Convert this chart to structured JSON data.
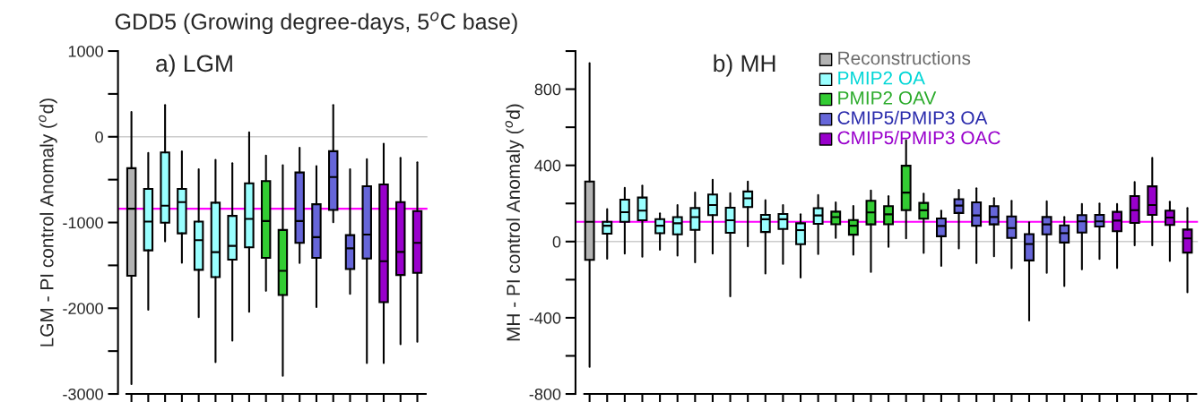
{
  "chart_data": [
    {
      "type": "box",
      "title": "GDD5 (Growing degree-days, 5$^{o}$C base)",
      "subtitle": "a) LGM",
      "ylabel": "LGM - PI control Anomaly ($^{o}$d)",
      "categories": [
        null,
        null,
        null,
        null,
        null,
        null,
        null,
        null,
        null,
        null,
        null,
        null,
        null,
        null,
        null,
        null,
        null,
        null
      ],
      "ylim": [
        -3000,
        1000
      ],
      "yticks": [
        -3000,
        {
          "value": -2500,
          "label": null
        },
        -2000,
        {
          "value": -1500,
          "label": null
        },
        -1000,
        {
          "value": -500,
          "label": null
        },
        0,
        {
          "value": 500,
          "label": null
        },
        1000
      ],
      "tick_labels": "y",
      "grid": false,
      "legend": false,
      "ref_lines": [
        {
          "axis": "y",
          "value": 0,
          "color": "#cccccc"
        },
        {
          "axis": "y",
          "value": -839,
          "color": "#ff00ff"
        }
      ],
      "series": [
        {
          "color": "#b3b3b3",
          "boxes": [
            {
              "low": -2885,
              "q1": -1622,
              "median": -839,
              "q3": -367,
              "high": 290
            },
            null,
            null,
            null,
            null,
            null,
            null,
            null,
            null,
            null,
            null,
            null,
            null,
            null,
            null,
            null,
            null,
            null
          ]
        },
        {
          "color": "#99ffff",
          "boxes": [
            null,
            {
              "low": -2017,
              "q1": -1325,
              "median": -990,
              "q3": -608,
              "high": -189
            },
            {
              "low": -1220,
              "q1": -1003,
              "median": -804,
              "q3": -182,
              "high": 371
            },
            {
              "low": -1469,
              "q1": -1126,
              "median": -762,
              "q3": -608,
              "high": -171
            },
            {
              "low": -2105,
              "q1": -1552,
              "median": -1206,
              "q3": -990,
              "high": -378
            },
            {
              "low": -2629,
              "q1": -1636,
              "median": -1346,
              "q3": -769,
              "high": -269
            },
            {
              "low": -2378,
              "q1": -1434,
              "median": -1273,
              "q3": -923,
              "high": -308
            },
            {
              "low": -2042,
              "q1": -1290,
              "median": -958,
              "q3": -542,
              "high": 52
            },
            null,
            null,
            null,
            null,
            null,
            null,
            null,
            null,
            null,
            null
          ]
        },
        {
          "color": "#33cc33",
          "boxes": [
            null,
            null,
            null,
            null,
            null,
            null,
            null,
            null,
            {
              "low": -1797,
              "q1": -1413,
              "median": -983,
              "q3": -517,
              "high": -220
            },
            {
              "low": -2787,
              "q1": -1846,
              "median": -1563,
              "q3": -1087,
              "high": -332
            },
            null,
            null,
            null,
            null,
            null,
            null,
            null,
            null
          ]
        },
        {
          "color": "#6666d9",
          "boxes": [
            null,
            null,
            null,
            null,
            null,
            null,
            null,
            null,
            null,
            null,
            {
              "low": -1472,
              "q1": -1238,
              "median": -983,
              "q3": -416,
              "high": -129
            },
            {
              "low": -1986,
              "q1": -1413,
              "median": -1171,
              "q3": -787,
              "high": -343
            },
            {
              "low": -997,
              "q1": -853,
              "median": -469,
              "q3": -168,
              "high": 371
            },
            {
              "low": -1832,
              "q1": -1542,
              "median": -1301,
              "q3": -1147,
              "high": -378
            },
            {
              "low": -2640,
              "q1": -1420,
              "median": -1140,
              "q3": -577,
              "high": -262
            },
            null,
            null,
            null
          ]
        },
        {
          "color": "#9900cc",
          "boxes": [
            null,
            null,
            null,
            null,
            null,
            null,
            null,
            null,
            null,
            null,
            null,
            null,
            null,
            null,
            null,
            {
              "low": -2640,
              "q1": -1930,
              "median": -1451,
              "q3": -556,
              "high": -80
            },
            {
              "low": -2420,
              "q1": -1612,
              "median": -1343,
              "q3": -762,
              "high": -245
            },
            {
              "low": -2392,
              "q1": -1587,
              "median": -1238,
              "q3": -867,
              "high": -297
            }
          ]
        }
      ]
    },
    {
      "type": "box",
      "subtitle": "b) MH",
      "ylabel": "MH - PI control Anomaly ($^{o}$d)",
      "categories": [
        null,
        null,
        null,
        null,
        null,
        null,
        null,
        null,
        null,
        null,
        null,
        null,
        null,
        null,
        null,
        null,
        null,
        null,
        null,
        null,
        null,
        null,
        null,
        null,
        null,
        null,
        null,
        null,
        null,
        null,
        null,
        null,
        null,
        null,
        null
      ],
      "ylim": [
        -800,
        1000
      ],
      "yticks": [
        -800,
        {
          "value": -600,
          "label": null
        },
        -400,
        {
          "value": -200,
          "label": null
        },
        0,
        {
          "value": 200,
          "label": null
        },
        400,
        {
          "value": 600,
          "label": null
        },
        800,
        {
          "value": 1000,
          "label": null
        }
      ],
      "tick_labels": "y",
      "grid": false,
      "legend": "top right",
      "ref_lines": [
        {
          "axis": "y",
          "value": 0,
          "color": "#cccccc"
        },
        {
          "axis": "y",
          "value": 104,
          "color": "#ff00ff"
        }
      ],
      "series": [
        {
          "name": "Reconstructions",
          "color": "#b3b3b3",
          "boxes": [
            {
              "low": -658,
              "q1": -96,
              "median": 104,
              "q3": 315,
              "high": 937
            },
            null,
            null,
            null,
            null,
            null,
            null,
            null,
            null,
            null,
            null,
            null,
            null,
            null,
            null,
            null,
            null,
            null,
            null,
            null,
            null,
            null,
            null,
            null,
            null,
            null,
            null,
            null,
            null,
            null,
            null,
            null,
            null,
            null,
            null
          ]
        },
        {
          "name": "PMIP2 OA",
          "color": "#99ffff",
          "boxes": [
            null,
            {
              "low": -90,
              "q1": 41,
              "median": 83,
              "q3": 104,
              "high": 170
            },
            {
              "low": -63,
              "q1": 104,
              "median": 154,
              "q3": 220,
              "high": 282
            },
            {
              "low": -80,
              "q1": 112,
              "median": 162,
              "q3": 231,
              "high": 294
            },
            {
              "low": -43,
              "q1": 44,
              "median": 83,
              "q3": 118,
              "high": 148
            },
            {
              "low": -74,
              "q1": 38,
              "median": 96,
              "q3": 128,
              "high": 192
            },
            {
              "low": -109,
              "q1": 61,
              "median": 128,
              "q3": 176,
              "high": 257
            },
            {
              "low": -63,
              "q1": 139,
              "median": 192,
              "q3": 247,
              "high": 324
            },
            {
              "low": -288,
              "q1": 46,
              "median": 112,
              "q3": 178,
              "high": 254
            },
            {
              "low": -25,
              "q1": 181,
              "median": 227,
              "q3": 263,
              "high": 315
            },
            {
              "low": -168,
              "q1": 50,
              "median": 117,
              "q3": 140,
              "high": 217
            },
            {
              "low": -117,
              "q1": 66,
              "median": 117,
              "q3": 145,
              "high": 192
            },
            {
              "low": -189,
              "q1": -14,
              "median": 60,
              "q3": 96,
              "high": 143
            },
            {
              "low": -65,
              "q1": 93,
              "median": 137,
              "q3": 175,
              "high": 244
            },
            null,
            null,
            null,
            null,
            null,
            null,
            null,
            null,
            null,
            null,
            null,
            null,
            null,
            null,
            null,
            null,
            null,
            null,
            null,
            null,
            null
          ]
        },
        {
          "name": "PMIP2 OAV",
          "color": "#33cc33",
          "boxes": [
            null,
            null,
            null,
            null,
            null,
            null,
            null,
            null,
            null,
            null,
            null,
            null,
            null,
            null,
            {
              "low": 19,
              "q1": 91,
              "median": 128,
              "q3": 157,
              "high": 206
            },
            {
              "low": -69,
              "q1": 36,
              "median": 83,
              "q3": 113,
              "high": 187
            },
            {
              "low": -159,
              "q1": 90,
              "median": 153,
              "q3": 214,
              "high": 268
            },
            {
              "low": -28,
              "q1": 91,
              "median": 143,
              "q3": 186,
              "high": 238
            },
            {
              "low": 17,
              "q1": 165,
              "median": 257,
              "q3": 398,
              "high": 531
            },
            {
              "low": -60,
              "q1": 120,
              "median": 164,
              "q3": 203,
              "high": 252
            },
            null,
            null,
            null,
            null,
            null,
            null,
            null,
            null,
            null,
            null,
            null,
            null,
            null,
            null,
            null
          ]
        },
        {
          "name": "CMIP5/PMIP3 OA",
          "color": "#6666d9",
          "boxes": [
            null,
            null,
            null,
            null,
            null,
            null,
            null,
            null,
            null,
            null,
            null,
            null,
            null,
            null,
            null,
            null,
            null,
            null,
            null,
            null,
            {
              "low": -128,
              "q1": 28,
              "median": 82,
              "q3": 121,
              "high": 162
            },
            {
              "low": -36,
              "q1": 150,
              "median": 189,
              "q3": 222,
              "high": 272
            },
            {
              "low": -113,
              "q1": 83,
              "median": 137,
              "q3": 206,
              "high": 280
            },
            {
              "low": -77,
              "q1": 90,
              "median": 129,
              "q3": 186,
              "high": 228
            },
            {
              "low": -140,
              "q1": 19,
              "median": 71,
              "q3": 132,
              "high": 214
            },
            {
              "low": -414,
              "q1": -99,
              "median": -13,
              "q3": 39,
              "high": 101
            },
            {
              "low": -164,
              "q1": 38,
              "median": 90,
              "q3": 129,
              "high": 211
            },
            {
              "low": -233,
              "q1": -5,
              "median": 44,
              "q3": 85,
              "high": 129
            },
            {
              "low": -146,
              "q1": 47,
              "median": 106,
              "q3": 139,
              "high": 198
            },
            {
              "low": -91,
              "q1": 79,
              "median": 106,
              "q3": 140,
              "high": 200
            },
            null,
            null,
            null,
            null,
            null
          ]
        },
        {
          "name": "CMIP5/PMIP3 OAC",
          "color": "#9900cc",
          "boxes": [
            null,
            null,
            null,
            null,
            null,
            null,
            null,
            null,
            null,
            null,
            null,
            null,
            null,
            null,
            null,
            null,
            null,
            null,
            null,
            null,
            null,
            null,
            null,
            null,
            null,
            null,
            null,
            null,
            null,
            null,
            {
              "low": -139,
              "q1": 54,
              "median": 110,
              "q3": 156,
              "high": 197
            },
            {
              "low": -20,
              "q1": 98,
              "median": 165,
              "q3": 239,
              "high": 312
            },
            {
              "low": -20,
              "q1": 140,
              "median": 192,
              "q3": 290,
              "high": 439
            },
            {
              "low": -102,
              "q1": 87,
              "median": 126,
              "q3": 162,
              "high": 209
            },
            {
              "low": -266,
              "q1": -58,
              "median": 17,
              "q3": 63,
              "high": 176
            }
          ]
        }
      ]
    }
  ]
}
